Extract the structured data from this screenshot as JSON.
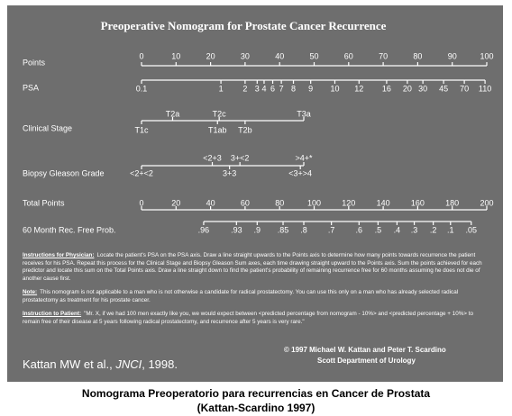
{
  "title": "Preoperative Nomogram for Prostate Cancer Recurrence",
  "scales": [
    {
      "name": "Points",
      "range": [
        0,
        100
      ],
      "upper": [
        0,
        10,
        20,
        30,
        40,
        50,
        60,
        70,
        80,
        90,
        100
      ]
    },
    {
      "name": "PSA",
      "lower": [
        {
          "label": "0.1",
          "at": 0
        },
        {
          "label": "1",
          "at": 23
        },
        {
          "label": "2",
          "at": 30
        },
        {
          "label": "3",
          "at": 33.5
        },
        {
          "label": "4",
          "at": 35.5
        },
        {
          "label": "6",
          "at": 38
        },
        {
          "label": "7",
          "at": 40.5
        },
        {
          "label": "8",
          "at": 44
        },
        {
          "label": "9",
          "at": 49
        },
        {
          "label": "10",
          "at": 56
        },
        {
          "label": "12",
          "at": 63
        },
        {
          "label": "16",
          "at": 71
        },
        {
          "label": "20",
          "at": 77
        },
        {
          "label": "30",
          "at": 81.5
        },
        {
          "label": "45",
          "at": 87.5
        },
        {
          "label": "70",
          "at": 93.5
        },
        {
          "label": "110",
          "at": 99.5
        }
      ]
    },
    {
      "name": "Clinical Stage",
      "upper": [
        {
          "label": "T2a",
          "at": 9
        },
        {
          "label": "T2c",
          "at": 22.5
        },
        {
          "label": "T3a",
          "at": 47
        }
      ],
      "lower": [
        {
          "label": "T1c",
          "at": 0
        },
        {
          "label": "T1ab",
          "at": 22
        },
        {
          "label": "T2b",
          "at": 30
        }
      ]
    },
    {
      "name": "Biopsy Gleason Grade",
      "upper": [
        {
          "label": "<2+3",
          "at": 20.5
        },
        {
          "label": "3+<2",
          "at": 28.5
        },
        {
          "label": ">4+*",
          "at": 47
        }
      ],
      "lower": [
        {
          "label": "<2+<2",
          "at": 0
        },
        {
          "label": "3+3",
          "at": 25.5
        },
        {
          "label": "<3+>4",
          "at": 46
        }
      ]
    },
    {
      "name": "Total Points",
      "range": [
        0,
        200
      ],
      "upper": [
        0,
        20,
        40,
        60,
        80,
        100,
        120,
        140,
        160,
        180,
        200
      ]
    },
    {
      "name": "60 Month Rec. Free Prob.",
      "lower": [
        {
          "label": ".96",
          "at": 36
        },
        {
          "label": ".93",
          "at": 55
        },
        {
          "label": ".9",
          "at": 67
        },
        {
          "label": ".85",
          "at": 82
        },
        {
          "label": ".8",
          "at": 94
        },
        {
          "label": ".7",
          "at": 110
        },
        {
          "label": ".6",
          "at": 126
        },
        {
          "label": ".5",
          "at": 137
        },
        {
          "label": ".4",
          "at": 148
        },
        {
          "label": ".3",
          "at": 158
        },
        {
          "label": ".2",
          "at": 169
        },
        {
          "label": ".1",
          "at": 179
        },
        {
          "label": ".05",
          "at": 191
        }
      ]
    }
  ],
  "instructions": [
    {
      "heading": "Instructions for Physician:",
      "text": "Locate the patient's PSA on the PSA axis. Draw a line straight upwards to the Points axis to determine how many points towards recurrence the patient receives for his PSA. Repeat this process for the Clinical Stage and Biopsy Gleason Sum axes, each time drawing straight upward to the Points axis. Sum the points achieved for each predictor and locate this sum on the Total Points axis. Draw a line straight down to find the patient's probability of remaining recurrence free for 60 months assuming he does not die of another cause first."
    },
    {
      "heading": "Note:",
      "text": "This nomogram is not applicable to a man who is not otherwise a candidate for radical prostatectomy. You can use this only on a man who has already selected radical prostatectomy as treatment for his prostate cancer."
    },
    {
      "heading": "Instruction to Patient:",
      "text": "\"Mr. X, if we had 100 men exactly like you, we would expect between <predicted percentage from nomogram - 10%> and <predicted percentage + 10%> to remain free of their disease at 5 years following radical prostatectomy, and recurrence after 5 years is very rare.\""
    }
  ],
  "copyright": "© 1997 Michael W. Kattan and Peter T. Scardino",
  "department": "Scott Department of Urology",
  "citation": {
    "authors": "Kattan MW et al., ",
    "journal": "JNCI",
    "year": ", 1998."
  },
  "caption": [
    "Nomograma Preoperatorio para recurrencias en Cancer de Prostata",
    "(Kattan-Scardino 1997)"
  ]
}
